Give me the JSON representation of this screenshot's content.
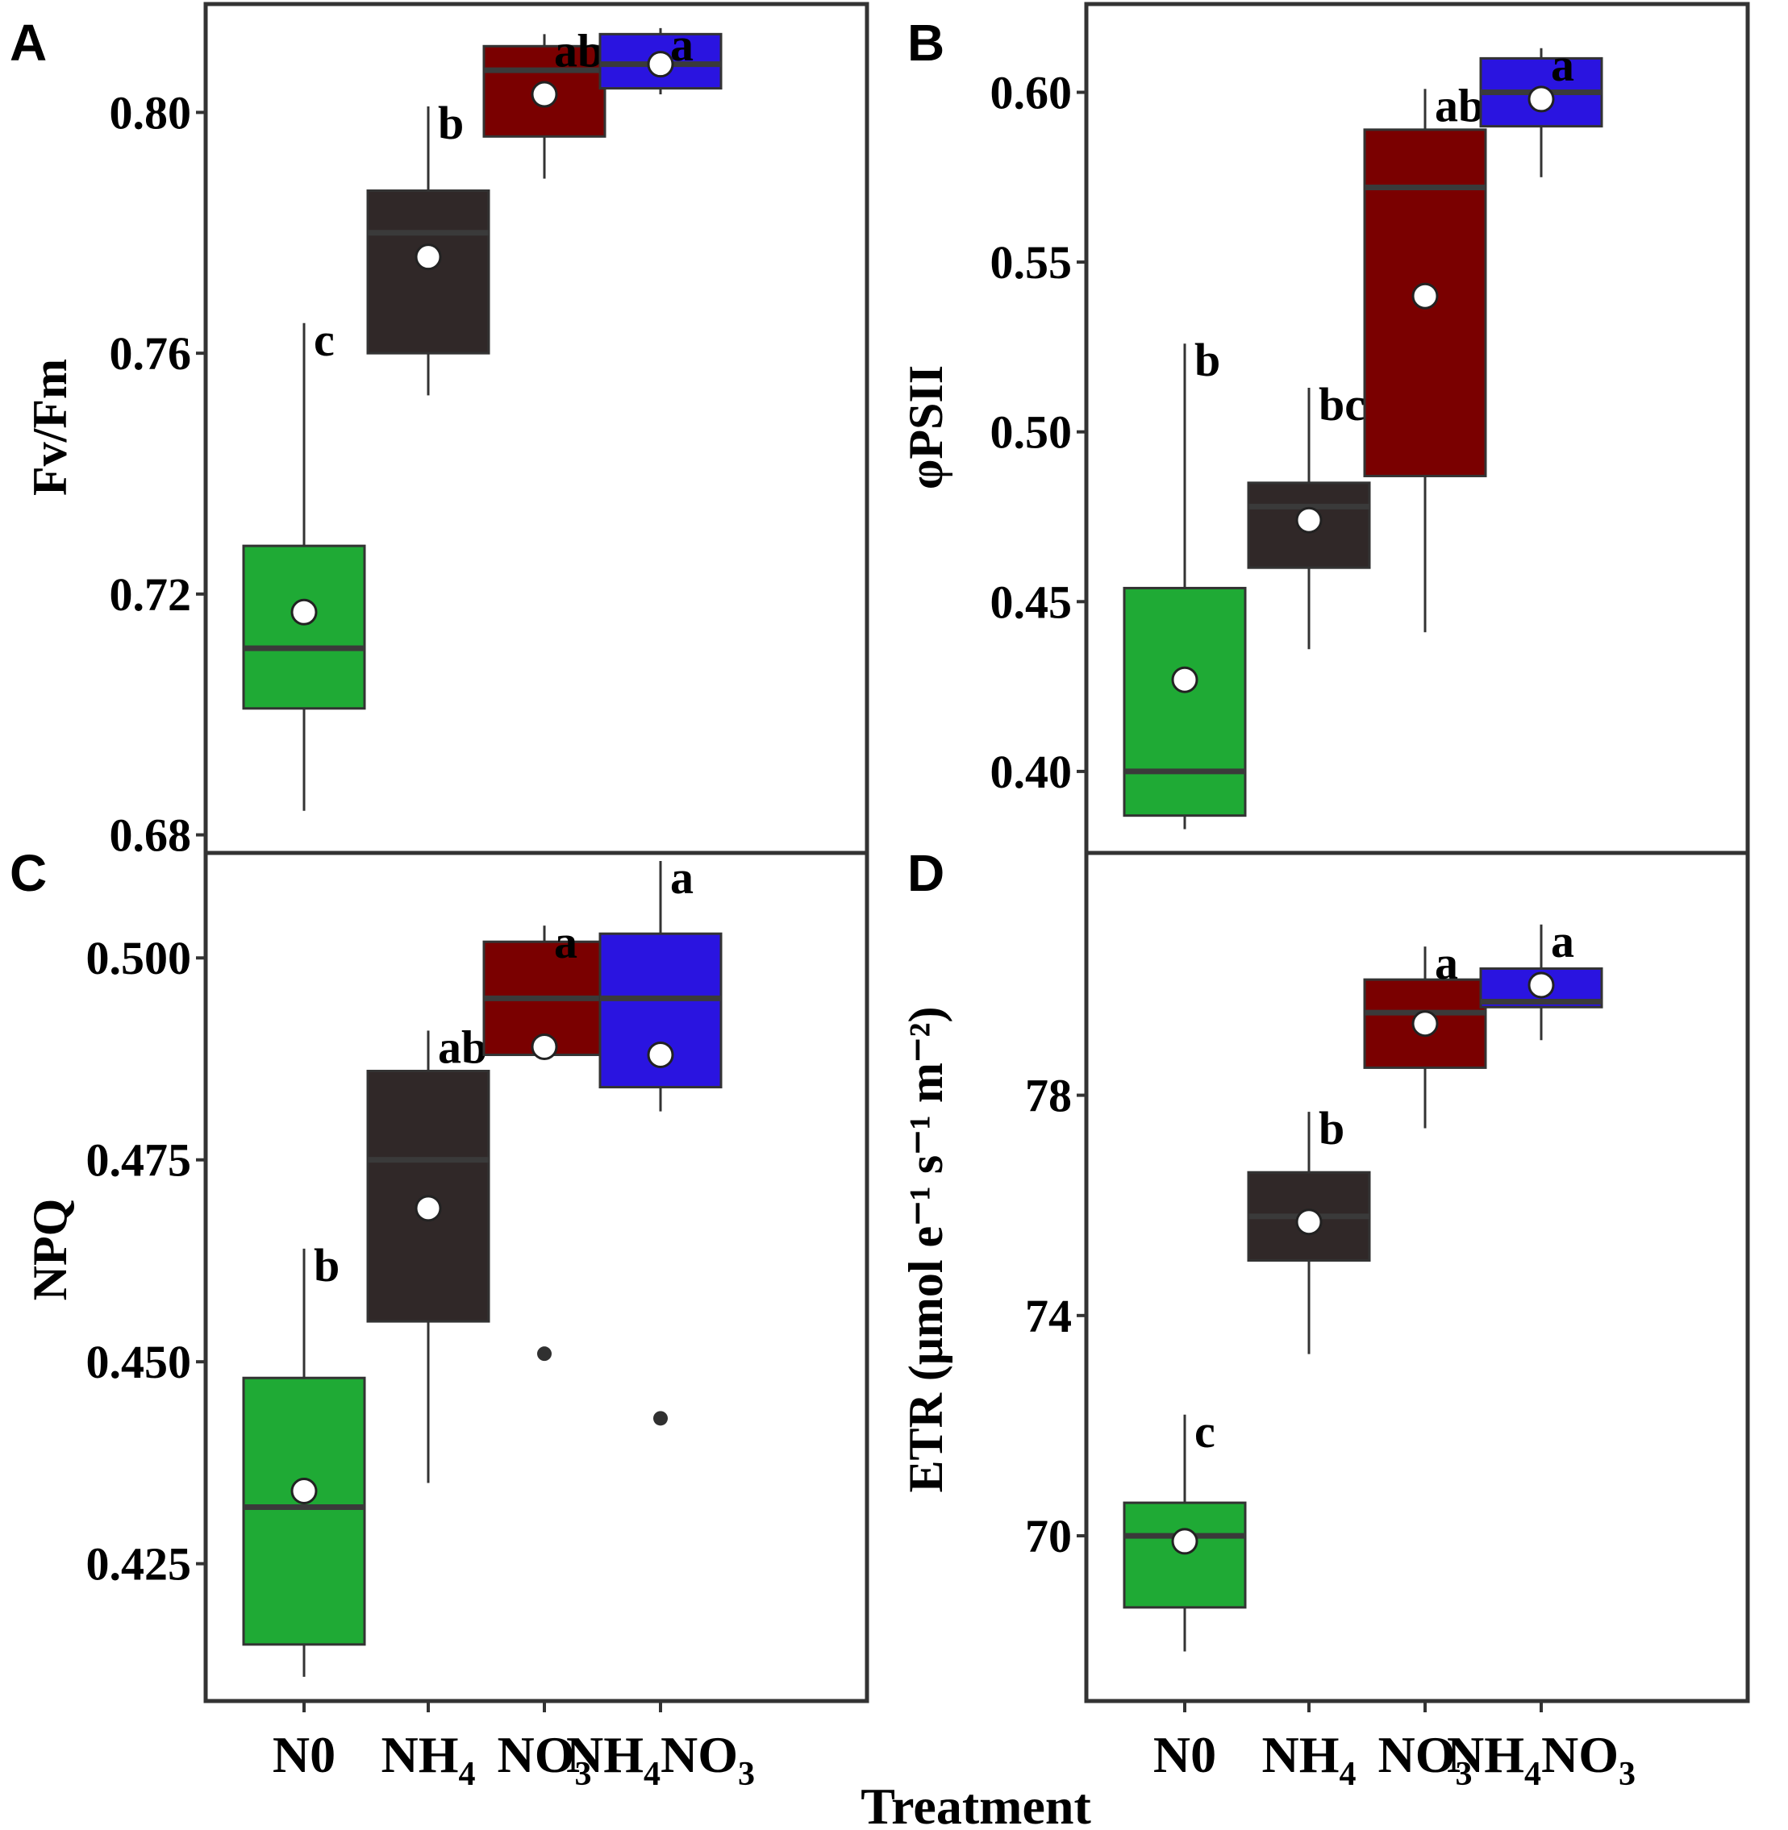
{
  "figure": {
    "x_axis_title": "Treatment",
    "categories": [
      {
        "main": "N0",
        "sub": [],
        "label": "N0"
      },
      {
        "main": "NH",
        "sub": [
          "4"
        ],
        "label": "NH4"
      },
      {
        "main": "NO",
        "sub": [
          "3"
        ],
        "label": "NO3"
      },
      {
        "main": "NH",
        "sub": [
          "4",
          "NO",
          "3"
        ],
        "label": "NH4NO3"
      }
    ],
    "colors": {
      "N0": "#1faa35",
      "NH4": "#302828",
      "NO3": "#7a0000",
      "NH4NO3": "#2a14e0",
      "median": "#3a3a3a",
      "mean_fill": "#ffffff",
      "outlier": "#303030",
      "frame": "#333333"
    }
  },
  "chart_data": [
    {
      "panel": "A",
      "type": "box",
      "ylabel": "Fv/Fm",
      "ylim": [
        0.677,
        0.818
      ],
      "yticks": [
        0.68,
        0.72,
        0.76,
        0.8
      ],
      "ytick_labels": [
        "0.68",
        "0.72",
        "0.76",
        "0.80"
      ],
      "boxes": [
        {
          "category": "N0",
          "whisker_low": 0.684,
          "q1": 0.701,
          "median": 0.711,
          "q3": 0.728,
          "whisker_high": 0.765,
          "mean": 0.717,
          "outliers": [],
          "sig": "c"
        },
        {
          "category": "NH4",
          "whisker_low": 0.753,
          "q1": 0.76,
          "median": 0.78,
          "q3": 0.787,
          "whisker_high": 0.801,
          "mean": 0.776,
          "outliers": [],
          "sig": "b"
        },
        {
          "category": "NO3",
          "whisker_low": 0.789,
          "q1": 0.796,
          "median": 0.807,
          "q3": 0.811,
          "whisker_high": 0.813,
          "mean": 0.803,
          "outliers": [],
          "sig": "ab"
        },
        {
          "category": "NH4NO3",
          "whisker_low": 0.803,
          "q1": 0.804,
          "median": 0.808,
          "q3": 0.813,
          "whisker_high": 0.814,
          "mean": 0.808,
          "outliers": [],
          "sig": "a"
        }
      ]
    },
    {
      "panel": "B",
      "type": "box",
      "ylabel": "φPSII",
      "ylim": [
        0.376,
        0.626
      ],
      "yticks": [
        0.4,
        0.45,
        0.5,
        0.55,
        0.6
      ],
      "ytick_labels": [
        "0.40",
        "0.45",
        "0.50",
        "0.55",
        "0.60"
      ],
      "boxes": [
        {
          "category": "N0",
          "whisker_low": 0.383,
          "q1": 0.387,
          "median": 0.4,
          "q3": 0.454,
          "whisker_high": 0.526,
          "mean": 0.427,
          "outliers": [],
          "sig": "b"
        },
        {
          "category": "NH4",
          "whisker_low": 0.436,
          "q1": 0.46,
          "median": 0.478,
          "q3": 0.485,
          "whisker_high": 0.513,
          "mean": 0.474,
          "outliers": [],
          "sig": "bc"
        },
        {
          "category": "NO3",
          "whisker_low": 0.441,
          "q1": 0.487,
          "median": 0.572,
          "q3": 0.589,
          "whisker_high": 0.601,
          "mean": 0.54,
          "outliers": [],
          "sig": "ab"
        },
        {
          "category": "NH4NO3",
          "whisker_low": 0.575,
          "q1": 0.59,
          "median": 0.6,
          "q3": 0.61,
          "whisker_high": 0.613,
          "mean": 0.598,
          "outliers": [],
          "sig": "a"
        }
      ]
    },
    {
      "panel": "C",
      "type": "box",
      "ylabel": "NPQ",
      "ylim": [
        0.408,
        0.513
      ],
      "yticks": [
        0.425,
        0.45,
        0.475,
        0.5
      ],
      "ytick_labels": [
        "0.425",
        "0.450",
        "0.475",
        "0.500"
      ],
      "boxes": [
        {
          "category": "N0",
          "whisker_low": 0.411,
          "q1": 0.415,
          "median": 0.432,
          "q3": 0.448,
          "whisker_high": 0.464,
          "mean": 0.434,
          "outliers": [],
          "sig": "b"
        },
        {
          "category": "NH4",
          "whisker_low": 0.435,
          "q1": 0.455,
          "median": 0.475,
          "q3": 0.486,
          "whisker_high": 0.491,
          "mean": 0.469,
          "outliers": [],
          "sig": "ab"
        },
        {
          "category": "NO3",
          "whisker_low": 0.488,
          "q1": 0.488,
          "median": 0.495,
          "q3": 0.502,
          "whisker_high": 0.504,
          "mean": 0.489,
          "outliers": [
            0.451
          ],
          "sig": "a"
        },
        {
          "category": "NH4NO3",
          "whisker_low": 0.481,
          "q1": 0.484,
          "median": 0.495,
          "q3": 0.503,
          "whisker_high": 0.512,
          "mean": 0.488,
          "outliers": [
            0.443
          ],
          "sig": "a"
        }
      ]
    },
    {
      "panel": "D",
      "type": "box",
      "ylabel": "ETR (μmol e⁻¹ s⁻¹ m⁻²)",
      "ylim": [
        67.0,
        82.4
      ],
      "yticks": [
        70,
        74,
        78
      ],
      "ytick_labels": [
        "70",
        "74",
        "78"
      ],
      "boxes": [
        {
          "category": "N0",
          "whisker_low": 67.9,
          "q1": 68.7,
          "median": 70.0,
          "q3": 70.6,
          "whisker_high": 72.2,
          "mean": 69.9,
          "outliers": [],
          "sig": "c"
        },
        {
          "category": "NH4",
          "whisker_low": 73.3,
          "q1": 75.0,
          "median": 75.8,
          "q3": 76.6,
          "whisker_high": 77.7,
          "mean": 75.7,
          "outliers": [],
          "sig": "b"
        },
        {
          "category": "NO3",
          "whisker_low": 77.4,
          "q1": 78.5,
          "median": 79.5,
          "q3": 80.1,
          "whisker_high": 80.7,
          "mean": 79.3,
          "outliers": [],
          "sig": "a"
        },
        {
          "category": "NH4NO3",
          "whisker_low": 79.0,
          "q1": 79.6,
          "median": 79.7,
          "q3": 80.3,
          "whisker_high": 81.1,
          "mean": 80.0,
          "outliers": [],
          "sig": "a"
        }
      ]
    }
  ]
}
